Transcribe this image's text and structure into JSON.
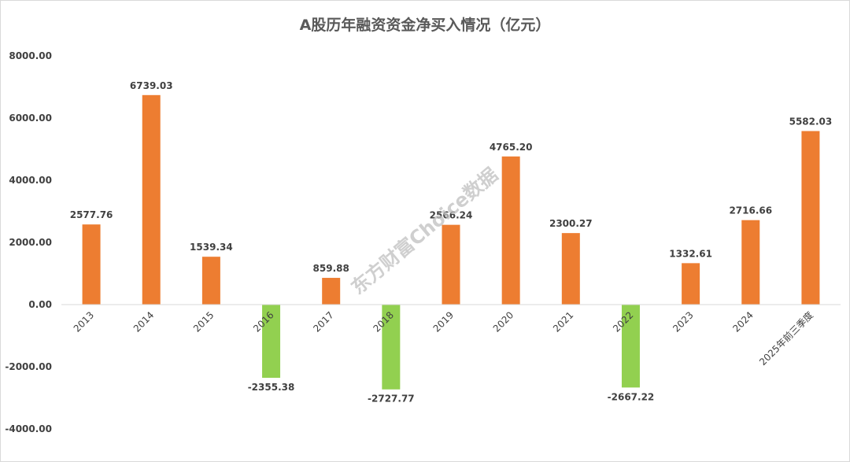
{
  "chart_data": {
    "type": "bar",
    "title": "A股历年融资资金净买入情况（亿元）",
    "xlabel": "",
    "ylabel": "",
    "categories": [
      "2013",
      "2014",
      "2015",
      "2016",
      "2017",
      "2018",
      "2019",
      "2020",
      "2021",
      "2022",
      "2023",
      "2024",
      "2025年前三季度"
    ],
    "values": [
      2577.76,
      6739.03,
      1539.34,
      -2355.38,
      859.88,
      -2727.77,
      2566.24,
      4765.2,
      2300.27,
      -2667.22,
      1332.61,
      2716.66,
      5582.03
    ],
    "value_labels": [
      "2577.76",
      "6739.03",
      "1539.34",
      "-2355.38",
      "859.88",
      "-2727.77",
      "2566.24",
      "4765.20",
      "2300.27",
      "-2667.22",
      "1332.61",
      "2716.66",
      "5582.03"
    ],
    "ylim": [
      -4000,
      8000
    ],
    "yticks": [
      8000,
      6000,
      4000,
      2000,
      0,
      -2000,
      -4000
    ],
    "ytick_labels": [
      "8000.00",
      "6000.00",
      "4000.00",
      "2000.00",
      "0.00",
      "-2000.00",
      "-4000.00"
    ],
    "grid": false,
    "legend": "none",
    "colors": {
      "positive": "#ED7D31",
      "negative": "#92D050",
      "axis": "#d9d9d9"
    }
  },
  "watermark": "东方财富Choice数据"
}
